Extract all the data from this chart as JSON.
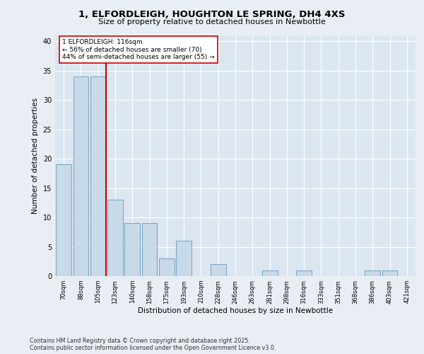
{
  "title_line1": "1, ELFORDLEIGH, HOUGHTON LE SPRING, DH4 4XS",
  "title_line2": "Size of property relative to detached houses in Newbottle",
  "xlabel": "Distribution of detached houses by size in Newbottle",
  "ylabel": "Number of detached properties",
  "footer": "Contains HM Land Registry data © Crown copyright and database right 2025.\nContains public sector information licensed under the Open Government Licence v3.0.",
  "categories": [
    "70sqm",
    "88sqm",
    "105sqm",
    "123sqm",
    "140sqm",
    "158sqm",
    "175sqm",
    "193sqm",
    "210sqm",
    "228sqm",
    "246sqm",
    "263sqm",
    "281sqm",
    "298sqm",
    "316sqm",
    "333sqm",
    "351sqm",
    "368sqm",
    "386sqm",
    "403sqm",
    "421sqm"
  ],
  "values": [
    19,
    34,
    34,
    13,
    9,
    9,
    3,
    6,
    0,
    2,
    0,
    0,
    1,
    0,
    1,
    0,
    0,
    0,
    1,
    1,
    0
  ],
  "bar_color": "#c8d9e8",
  "bar_edge_color": "#6699bb",
  "property_size_label": "1 ELFORDLEIGH: 116sqm",
  "pct_smaller": 56,
  "n_smaller": 70,
  "pct_larger_semi": 44,
  "n_larger_semi": 55,
  "vline_color": "#cc0000",
  "annotation_box_color": "#cc0000",
  "background_color": "#e8eef4",
  "plot_bg_color": "#dce6f0",
  "grid_color": "#ffffff",
  "ylim": [
    0,
    41
  ],
  "yticks": [
    0,
    5,
    10,
    15,
    20,
    25,
    30,
    35,
    40
  ]
}
